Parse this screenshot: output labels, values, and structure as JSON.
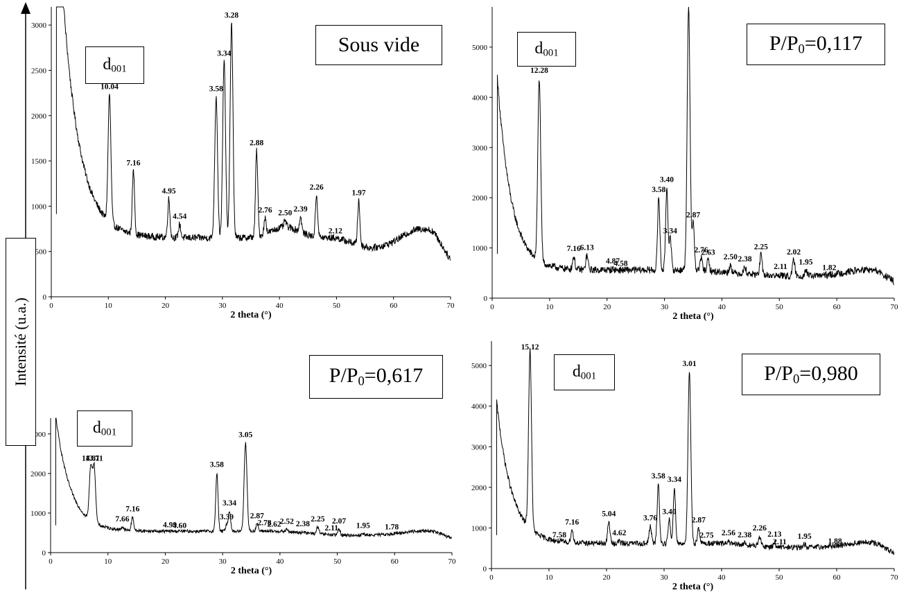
{
  "y_axis_label": "Intensité (u.a.)",
  "chart_data": [
    {
      "type": "line",
      "condition": "Sous vide",
      "d_label": {
        "base": "d",
        "sub": "001"
      },
      "xlabel": "2 theta (°)",
      "xlim": [
        0,
        70
      ],
      "ylim": [
        0,
        3200
      ],
      "xticks": [
        0,
        10,
        20,
        30,
        40,
        50,
        60,
        70
      ],
      "yticks": [
        0,
        500,
        1000,
        1500,
        2000,
        2500,
        3000
      ],
      "peaks": [
        {
          "x": 10.2,
          "y": 2230,
          "label": "10.04"
        },
        {
          "x": 14.4,
          "y": 1390,
          "label": "7.16"
        },
        {
          "x": 20.6,
          "y": 1080,
          "label": "4.95"
        },
        {
          "x": 22.5,
          "y": 800,
          "label": "4.54"
        },
        {
          "x": 28.9,
          "y": 2210,
          "label": "3.58"
        },
        {
          "x": 30.3,
          "y": 2600,
          "label": "3.34"
        },
        {
          "x": 31.6,
          "y": 3020,
          "label": "3.28"
        },
        {
          "x": 36.0,
          "y": 1610,
          "label": "2.88"
        },
        {
          "x": 37.5,
          "y": 870,
          "label": "2.76"
        },
        {
          "x": 41.0,
          "y": 840,
          "label": "2.50"
        },
        {
          "x": 43.7,
          "y": 880,
          "label": "2.39"
        },
        {
          "x": 46.5,
          "y": 1120,
          "label": "2.26"
        },
        {
          "x": 49.8,
          "y": 640,
          "label": "2.12"
        },
        {
          "x": 53.9,
          "y": 1060,
          "label": "1.97"
        }
      ]
    },
    {
      "type": "line",
      "condition": "P/P0=0,117",
      "condition_parts": {
        "pre": "P/P",
        "sub": "0",
        "post": "=0,117"
      },
      "d_label": {
        "base": "d",
        "sub": "001"
      },
      "xlabel": "2 theta (°)",
      "xlim": [
        0,
        70
      ],
      "ylim": [
        0,
        5800
      ],
      "xticks": [
        0,
        10,
        20,
        30,
        40,
        50,
        60,
        70
      ],
      "yticks": [
        0,
        1000,
        2000,
        3000,
        4000,
        5000
      ],
      "peaks": [
        {
          "x": 8.2,
          "y": 4380,
          "label": "12.28"
        },
        {
          "x": 14.2,
          "y": 830,
          "label": "7.16"
        },
        {
          "x": 16.5,
          "y": 850,
          "label": "6.13"
        },
        {
          "x": 21.0,
          "y": 580,
          "label": "4.87"
        },
        {
          "x": 22.4,
          "y": 530,
          "label": "4.58"
        },
        {
          "x": 29.0,
          "y": 2000,
          "label": "3.58"
        },
        {
          "x": 30.4,
          "y": 2200,
          "label": "3.40"
        },
        {
          "x": 31.0,
          "y": 1180,
          "label": "3.34"
        },
        {
          "x": 34.2,
          "y": 5800,
          "label": ""
        },
        {
          "x": 35.0,
          "y": 1500,
          "label": "2.87"
        },
        {
          "x": 36.4,
          "y": 800,
          "label": "2.76"
        },
        {
          "x": 37.6,
          "y": 750,
          "label": "2.63"
        },
        {
          "x": 41.5,
          "y": 660,
          "label": "2.50"
        },
        {
          "x": 44.0,
          "y": 620,
          "label": "2.38"
        },
        {
          "x": 46.8,
          "y": 860,
          "label": "2.25"
        },
        {
          "x": 50.2,
          "y": 470,
          "label": "2.11"
        },
        {
          "x": 52.5,
          "y": 760,
          "label": "2.02"
        },
        {
          "x": 54.6,
          "y": 560,
          "label": "1.95"
        },
        {
          "x": 58.7,
          "y": 450,
          "label": "1.82"
        }
      ]
    },
    {
      "type": "line",
      "condition": "P/P0=0,617",
      "condition_parts": {
        "pre": "P/P",
        "sub": "0",
        "post": "=0,617"
      },
      "d_label": {
        "base": "d",
        "sub": "001"
      },
      "xlabel": "2 theta (°)",
      "xlim": [
        0,
        70
      ],
      "ylim": [
        0,
        3400
      ],
      "xticks": [
        0,
        10,
        20,
        30,
        40,
        50,
        60,
        70
      ],
      "yticks": [
        0,
        1000,
        2000,
        3000
      ],
      "peaks": [
        {
          "x": 7.0,
          "y": 2180,
          "label": "14.81"
        },
        {
          "x": 7.6,
          "y": 2180,
          "label": "13.71"
        },
        {
          "x": 12.5,
          "y": 650,
          "label": "7.66"
        },
        {
          "x": 14.3,
          "y": 900,
          "label": "7.16"
        },
        {
          "x": 20.8,
          "y": 500,
          "label": "4.99"
        },
        {
          "x": 22.5,
          "y": 480,
          "label": "4.60"
        },
        {
          "x": 29.0,
          "y": 2020,
          "label": "3.58"
        },
        {
          "x": 30.7,
          "y": 700,
          "label": "3.39"
        },
        {
          "x": 31.2,
          "y": 1050,
          "label": "3.34"
        },
        {
          "x": 34.0,
          "y": 2780,
          "label": "3.05"
        },
        {
          "x": 36.0,
          "y": 730,
          "label": "2.87"
        },
        {
          "x": 37.3,
          "y": 550,
          "label": "2.78"
        },
        {
          "x": 39.0,
          "y": 520,
          "label": "2.62"
        },
        {
          "x": 41.2,
          "y": 590,
          "label": "2.52"
        },
        {
          "x": 44.0,
          "y": 530,
          "label": "2.38"
        },
        {
          "x": 46.6,
          "y": 650,
          "label": "2.25"
        },
        {
          "x": 49.0,
          "y": 420,
          "label": "2.11"
        },
        {
          "x": 50.3,
          "y": 600,
          "label": "2.07"
        },
        {
          "x": 54.5,
          "y": 480,
          "label": "1.95"
        },
        {
          "x": 59.5,
          "y": 450,
          "label": "1.78"
        }
      ]
    },
    {
      "type": "line",
      "condition": "P/P0=0,980",
      "condition_parts": {
        "pre": "P/P",
        "sub": "0",
        "post": "=0,980"
      },
      "d_label": {
        "base": "d",
        "sub": "001"
      },
      "xlabel": "2 theta (°)",
      "xlim": [
        0,
        70
      ],
      "ylim": [
        0,
        5600
      ],
      "xticks": [
        0,
        10,
        20,
        30,
        40,
        50,
        60,
        70
      ],
      "yticks": [
        0,
        1000,
        2000,
        3000,
        4000,
        5000
      ],
      "peaks": [
        {
          "x": 6.7,
          "y": 5400,
          "label": "15.12"
        },
        {
          "x": 11.8,
          "y": 630,
          "label": "7.58"
        },
        {
          "x": 14.0,
          "y": 950,
          "label": "7.16"
        },
        {
          "x": 20.4,
          "y": 1150,
          "label": "5.04"
        },
        {
          "x": 22.2,
          "y": 680,
          "label": "4.62"
        },
        {
          "x": 27.6,
          "y": 1050,
          "label": "3.76"
        },
        {
          "x": 29.0,
          "y": 2080,
          "label": "3.58"
        },
        {
          "x": 30.9,
          "y": 1200,
          "label": "3.40"
        },
        {
          "x": 31.8,
          "y": 2000,
          "label": "3.34"
        },
        {
          "x": 34.4,
          "y": 4850,
          "label": "3.01"
        },
        {
          "x": 36.0,
          "y": 1000,
          "label": "2.87"
        },
        {
          "x": 37.4,
          "y": 620,
          "label": "2.75"
        },
        {
          "x": 41.2,
          "y": 680,
          "label": "2.56"
        },
        {
          "x": 44.0,
          "y": 630,
          "label": "2.38"
        },
        {
          "x": 46.6,
          "y": 800,
          "label": "2.26"
        },
        {
          "x": 49.2,
          "y": 650,
          "label": "2.13"
        },
        {
          "x": 50.1,
          "y": 460,
          "label": "2.11"
        },
        {
          "x": 54.4,
          "y": 600,
          "label": "1.95"
        },
        {
          "x": 59.7,
          "y": 480,
          "label": "1.88"
        }
      ]
    }
  ]
}
